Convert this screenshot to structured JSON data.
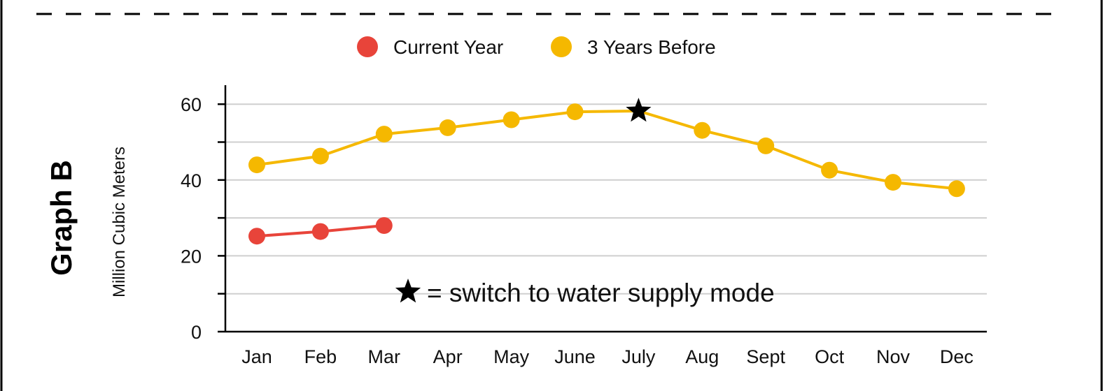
{
  "chart_data": {
    "type": "line",
    "title": "Graph B",
    "ylabel": "Million Cubic Meters",
    "xlabel": "",
    "categories": [
      "Jan",
      "Feb",
      "Mar",
      "Apr",
      "May",
      "June",
      "July",
      "Aug",
      "Sept",
      "Oct",
      "Nov",
      "Dec"
    ],
    "ylim": [
      0,
      65
    ],
    "yticks": [
      0,
      20,
      40,
      60
    ],
    "yminor_ticks": [
      10,
      30,
      50
    ],
    "grid": true,
    "legend_position": "top-center",
    "series": [
      {
        "name": "Current Year",
        "color": "#e8443a",
        "values": [
          25.2,
          26.4,
          28.0,
          null,
          null,
          null,
          null,
          null,
          null,
          null,
          null,
          null
        ]
      },
      {
        "name": "3 Years Before",
        "color": "#f5b800",
        "values": [
          44.0,
          46.3,
          52.1,
          53.8,
          55.9,
          58.0,
          58.2,
          53.1,
          49.0,
          42.6,
          39.4,
          37.7
        ]
      }
    ],
    "annotation": {
      "marker": "star",
      "category": "July",
      "series": "3 Years Before",
      "text": "= switch to water supply mode"
    }
  }
}
